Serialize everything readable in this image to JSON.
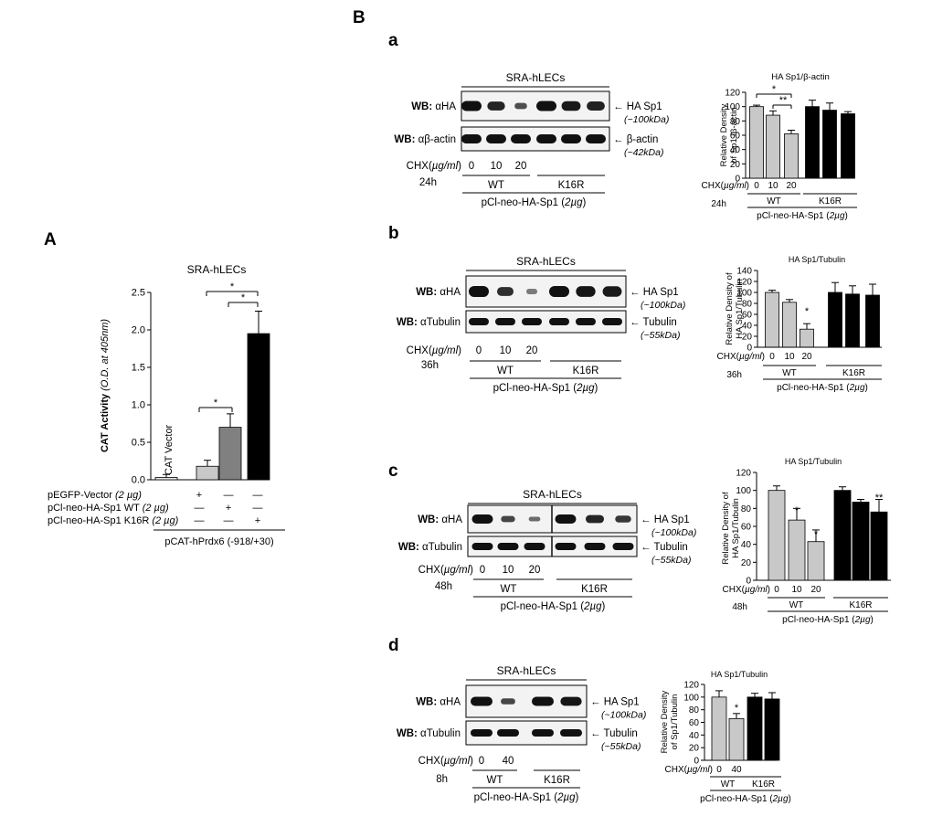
{
  "panels": {
    "A": "A",
    "B": "B",
    "a": "a",
    "b": "b",
    "c": "c",
    "d": "d"
  },
  "common": {
    "cell_line": "SRA-hLECs",
    "wb_label": "WB:",
    "ab_ha": "αHA",
    "ab_actin": "αβ-actin",
    "ab_tubulin": "αTubulin",
    "arrow": "←",
    "band_hasp1": "HA Sp1",
    "kda_100": "(~100kDa)",
    "band_actin": "β-actin",
    "kda_42": "(~42kDa)",
    "band_tubulin": "Tubulin",
    "kda_55": "(~55kDa)",
    "chx_prefix": "CHX(",
    "chx_unit": "µg/ml",
    "chx_suffix": ")",
    "wt": "WT",
    "k16r": "K16R",
    "plasmid_prefix": "pCl-neo-HA-Sp1 (",
    "plasmid_amount": "2µg",
    "plasmid_suffix": ")"
  },
  "timepoints": {
    "a": "24h",
    "b": "36h",
    "c": "48h",
    "d": "8h"
  },
  "doses_three": [
    "0",
    "10",
    "20"
  ],
  "doses_two": [
    "0",
    "40"
  ],
  "panelA": {
    "subtitle": "SRA-hLECs",
    "ylabel_main": "CAT Activity",
    "ylabel_unit": "(O.D. at 405nm)",
    "bar_annotation": "CAT Vector",
    "conditions": [
      {
        "name": "pEGFP-Vector",
        "amount": "(2 µg)",
        "marks": [
          "+",
          "—",
          "—"
        ]
      },
      {
        "name": "pCl-neo-HA-Sp1 WT",
        "amount": "(2 µg)",
        "marks": [
          "—",
          "+",
          "—"
        ]
      },
      {
        "name": "pCl-neo-HA-Sp1 K16R",
        "amount": "(2 µg)",
        "marks": [
          "—",
          "—",
          "+"
        ]
      }
    ],
    "reporter": "pCAT-hPrdx6 (-918/+30)",
    "sig": [
      "*",
      "*",
      "*"
    ]
  },
  "chart_data": [
    {
      "type": "bar",
      "panel": "A",
      "title": "SRA-hLECs",
      "ylabel": "CAT Activity (O.D. at 405nm)",
      "categories": [
        "CAT Vector",
        "pEGFP-Vector",
        "pCl-neo-HA-Sp1 WT",
        "pCl-neo-HA-Sp1 K16R"
      ],
      "values": [
        0.03,
        0.18,
        0.7,
        1.95
      ],
      "errors": [
        0.04,
        0.08,
        0.18,
        0.3
      ],
      "colors": [
        "#e6e6e6",
        "#c8c8c8",
        "#808080",
        "#000000"
      ],
      "ylim": [
        0,
        2.5
      ],
      "yticks": [
        "0.0",
        "0.5",
        "1.0",
        "1.5",
        "2.0",
        "2.5"
      ]
    },
    {
      "type": "bar",
      "panel": "a",
      "title": "HA Sp1/β-actin",
      "ylabel": "Relative Density of Sp1 /β-actin",
      "categories": [
        "0",
        "10",
        "20",
        "0",
        "10",
        "20"
      ],
      "values": [
        100,
        88,
        62,
        100,
        95,
        90
      ],
      "errors": [
        2,
        6,
        5,
        9,
        10,
        3
      ],
      "ylim": [
        0,
        120
      ],
      "yticks": [
        "0",
        "20",
        "40",
        "60",
        "80",
        "100",
        "120"
      ],
      "sig_marks": [
        "*",
        "**"
      ]
    },
    {
      "type": "bar",
      "panel": "b",
      "title": "HA Sp1/Tubulin",
      "ylabel": "Relative Density of HA Sp1/Tubulin",
      "categories": [
        "0",
        "10",
        "20",
        "0",
        "10",
        "20"
      ],
      "values": [
        100,
        82,
        33,
        100,
        97,
        95
      ],
      "errors": [
        4,
        5,
        10,
        18,
        15,
        20
      ],
      "ylim": [
        0,
        140
      ],
      "yticks": [
        "0",
        "20",
        "40",
        "60",
        "80",
        "100",
        "120",
        "140"
      ],
      "sig_marks": [
        "*"
      ]
    },
    {
      "type": "bar",
      "panel": "c",
      "title": "HA Sp1/Tubulin",
      "ylabel": "Relative Density of HA Sp1/Tubulin",
      "categories": [
        "0",
        "10",
        "20",
        "0",
        "10",
        "20"
      ],
      "values": [
        100,
        67,
        43,
        100,
        87,
        76
      ],
      "errors": [
        5,
        13,
        13,
        4,
        3,
        14
      ],
      "ylim": [
        0,
        120
      ],
      "yticks": [
        "0",
        "20",
        "40",
        "60",
        "80",
        "100",
        "120"
      ],
      "sig_marks": [
        "*",
        "*",
        "**"
      ]
    },
    {
      "type": "bar",
      "panel": "d",
      "title": "HA Sp1/Tubulin",
      "ylabel": "Relative Density of Sp1/Tubulin",
      "categories": [
        "0",
        "40",
        "0",
        "40"
      ],
      "values": [
        100,
        66,
        100,
        97
      ],
      "errors": [
        10,
        8,
        6,
        10
      ],
      "ylim": [
        0,
        120
      ],
      "yticks": [
        "0",
        "20",
        "40",
        "60",
        "80",
        "100",
        "120"
      ],
      "sig_marks": [
        "*"
      ]
    }
  ]
}
